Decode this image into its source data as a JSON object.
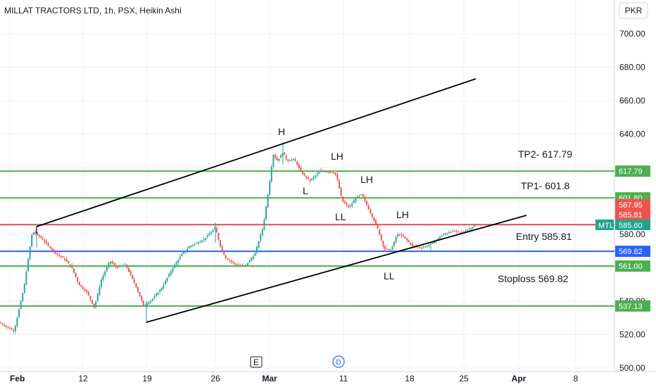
{
  "header": {
    "title": "MILLAT TRACTORS LTD, 1h, PSX, Heikin Ashi",
    "currency": "PKR"
  },
  "chart_data": {
    "type": "candlestick",
    "symbol": "MTL",
    "y_ticks": [
      "700.00",
      "680.00",
      "660.00",
      "640.00",
      "580.00",
      "540.00",
      "520.00",
      "500.00"
    ],
    "ylim": [
      500,
      708
    ],
    "x_ticks": [
      "Feb",
      "12",
      "19",
      "26",
      "Mar",
      "11",
      "18",
      "25",
      "Apr",
      "8"
    ],
    "grid": true,
    "colors": {
      "up": "#26a69a",
      "down": "#ef5350",
      "green_level": "#4caf50",
      "red_level": "#e04a5a",
      "blue_level": "#2962ff",
      "trend": "#000000"
    },
    "price_levels": [
      {
        "value": 617.79,
        "label": "617.79",
        "color": "#4caf50"
      },
      {
        "value": 601.8,
        "label": "601.80",
        "color": "#4caf50"
      },
      {
        "value": 585.81,
        "label": "585.81",
        "color": "#e04a5a"
      },
      {
        "value": 569.82,
        "label": "569.82",
        "color": "#2962ff"
      },
      {
        "value": 561.0,
        "label": "561.00",
        "color": "#4caf50"
      },
      {
        "value": 537.13,
        "label": "537.13",
        "color": "#4caf50"
      }
    ],
    "price_tags": [
      {
        "value": 587.95,
        "label": "587.95",
        "color": "#ef5350"
      },
      {
        "value": 585.81,
        "label": "585.81",
        "color": "#ef5350"
      },
      {
        "value": 585.6,
        "label": "585.60",
        "color": "#22a38f",
        "symbol": "MTL"
      }
    ],
    "annotations": [
      "H",
      "LH",
      "L",
      "LH",
      "LL",
      "LH",
      "LL",
      "TP2- 617.79",
      "TP1- 601.8",
      "Entry 585.81",
      "Stoploss 569.82"
    ],
    "markers": [
      "E",
      "D"
    ],
    "waypoints": [
      [
        0,
        527
      ],
      [
        20,
        522
      ],
      [
        34,
        548
      ],
      [
        46,
        582
      ],
      [
        58,
        578
      ],
      [
        78,
        569
      ],
      [
        92,
        565
      ],
      [
        102,
        560
      ],
      [
        112,
        550
      ],
      [
        124,
        545
      ],
      [
        134,
        536
      ],
      [
        144,
        553
      ],
      [
        156,
        564
      ],
      [
        166,
        560
      ],
      [
        178,
        562
      ],
      [
        192,
        550
      ],
      [
        204,
        537
      ],
      [
        216,
        541
      ],
      [
        230,
        548
      ],
      [
        244,
        559
      ],
      [
        258,
        568
      ],
      [
        270,
        573
      ],
      [
        290,
        577
      ],
      [
        306,
        584
      ],
      [
        312,
        574
      ],
      [
        320,
        566
      ],
      [
        334,
        562
      ],
      [
        348,
        561
      ],
      [
        362,
        568
      ],
      [
        374,
        585
      ],
      [
        382,
        608
      ],
      [
        388,
        628
      ],
      [
        394,
        624
      ],
      [
        402,
        629
      ],
      [
        408,
        624
      ],
      [
        418,
        625
      ],
      [
        428,
        617
      ],
      [
        440,
        612
      ],
      [
        456,
        618
      ],
      [
        474,
        617
      ],
      [
        478,
        615
      ],
      [
        486,
        600
      ],
      [
        496,
        596
      ],
      [
        506,
        602
      ],
      [
        514,
        604
      ],
      [
        526,
        593
      ],
      [
        536,
        584
      ],
      [
        546,
        571
      ],
      [
        556,
        571
      ],
      [
        564,
        580
      ],
      [
        572,
        579
      ],
      [
        586,
        573
      ],
      [
        600,
        572
      ],
      [
        612,
        574
      ],
      [
        626,
        579
      ],
      [
        642,
        582
      ],
      [
        656,
        581
      ],
      [
        670,
        584
      ],
      [
        676,
        586
      ]
    ]
  }
}
